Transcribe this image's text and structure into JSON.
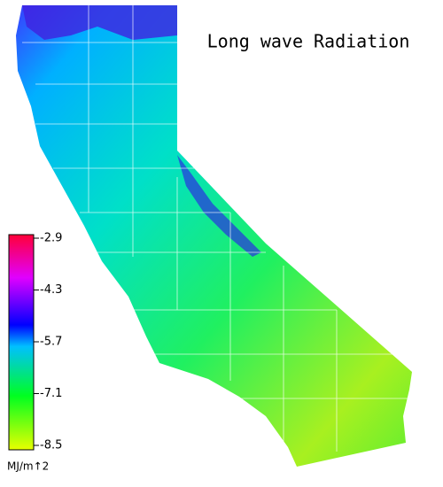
{
  "title": "Long wave Radiation",
  "legend": {
    "range": [
      -8.5,
      -2.9
    ],
    "ticks": [
      -2.9,
      -4.3,
      -5.7,
      -7.1,
      -8.5
    ],
    "unit": "MJ/m↑2"
  }
}
